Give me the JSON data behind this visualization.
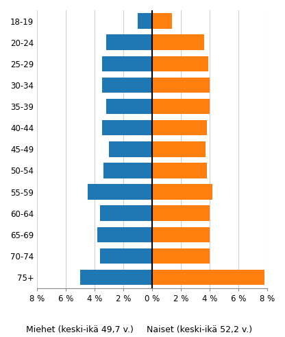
{
  "categories": [
    "18-19",
    "20-24",
    "25-29",
    "30-34",
    "35-39",
    "40-44",
    "45-49",
    "50-54",
    "55-59",
    "60-64",
    "65-69",
    "70-74",
    "75+"
  ],
  "men_values": [
    -1.0,
    -3.2,
    -3.5,
    -3.5,
    -3.2,
    -3.5,
    -3.0,
    -3.4,
    -4.5,
    -3.6,
    -3.8,
    -3.6,
    -5.0
  ],
  "women_values": [
    1.4,
    3.6,
    3.9,
    4.0,
    4.0,
    3.8,
    3.7,
    3.8,
    4.2,
    4.0,
    4.0,
    4.0,
    7.8
  ],
  "men_color": "#1f77b4",
  "women_color": "#ff7f0e",
  "xlim": [
    -8,
    8
  ],
  "xticks": [
    -8,
    -6,
    -4,
    -2,
    0,
    2,
    4,
    6,
    8
  ],
  "xlabel_men": "Miehet (keski-ikä 49,7 v.)",
  "xlabel_women": "Naiset (keski-ikä 52,2 v.)",
  "background_color": "#ffffff",
  "grid_color": "#d0d0d0",
  "bar_height": 0.72,
  "tick_fontsize": 8.5,
  "label_fontsize": 9
}
